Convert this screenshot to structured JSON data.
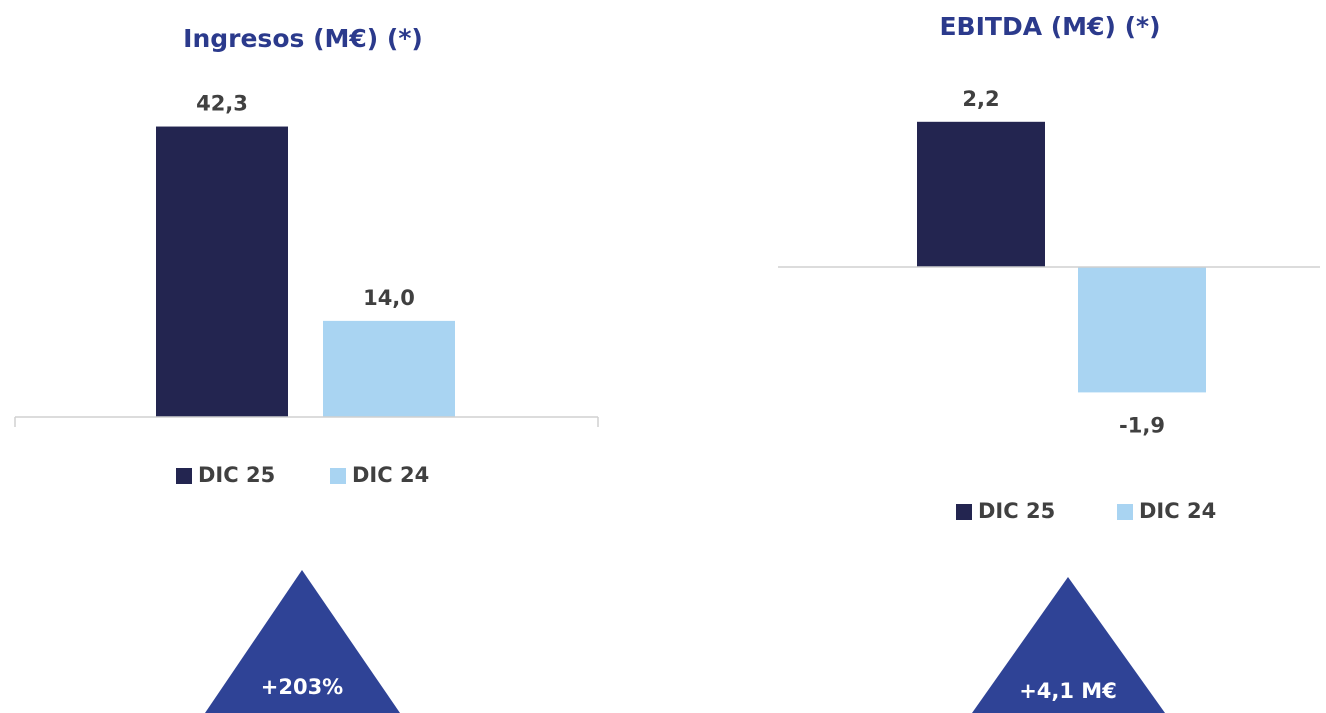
{
  "chart_data": [
    {
      "type": "bar",
      "title": "Ingresos (M€) (*)",
      "series": [
        {
          "name": "DIC 25",
          "color": "#232550",
          "values": [
            42.3
          ],
          "value_labels": [
            "42,3"
          ]
        },
        {
          "name": "DIC 24",
          "color": "#a9d4f2",
          "values": [
            14.0
          ],
          "value_labels": [
            "14,0"
          ]
        }
      ],
      "ylim": [
        0,
        45
      ],
      "annotation": "+203%",
      "annotation_color": "#2f4396"
    },
    {
      "type": "bar",
      "title": "EBITDA (M€) (*)",
      "series": [
        {
          "name": "DIC 25",
          "color": "#232550",
          "values": [
            2.2
          ],
          "value_labels": [
            "2,2"
          ]
        },
        {
          "name": "DIC 24",
          "color": "#a9d4f2",
          "values": [
            -1.9
          ],
          "value_labels": [
            "-1,9"
          ]
        }
      ],
      "ylim": [
        -2.5,
        2.5
      ],
      "annotation": "+4,1 M€",
      "annotation_color": "#2f4396"
    }
  ]
}
